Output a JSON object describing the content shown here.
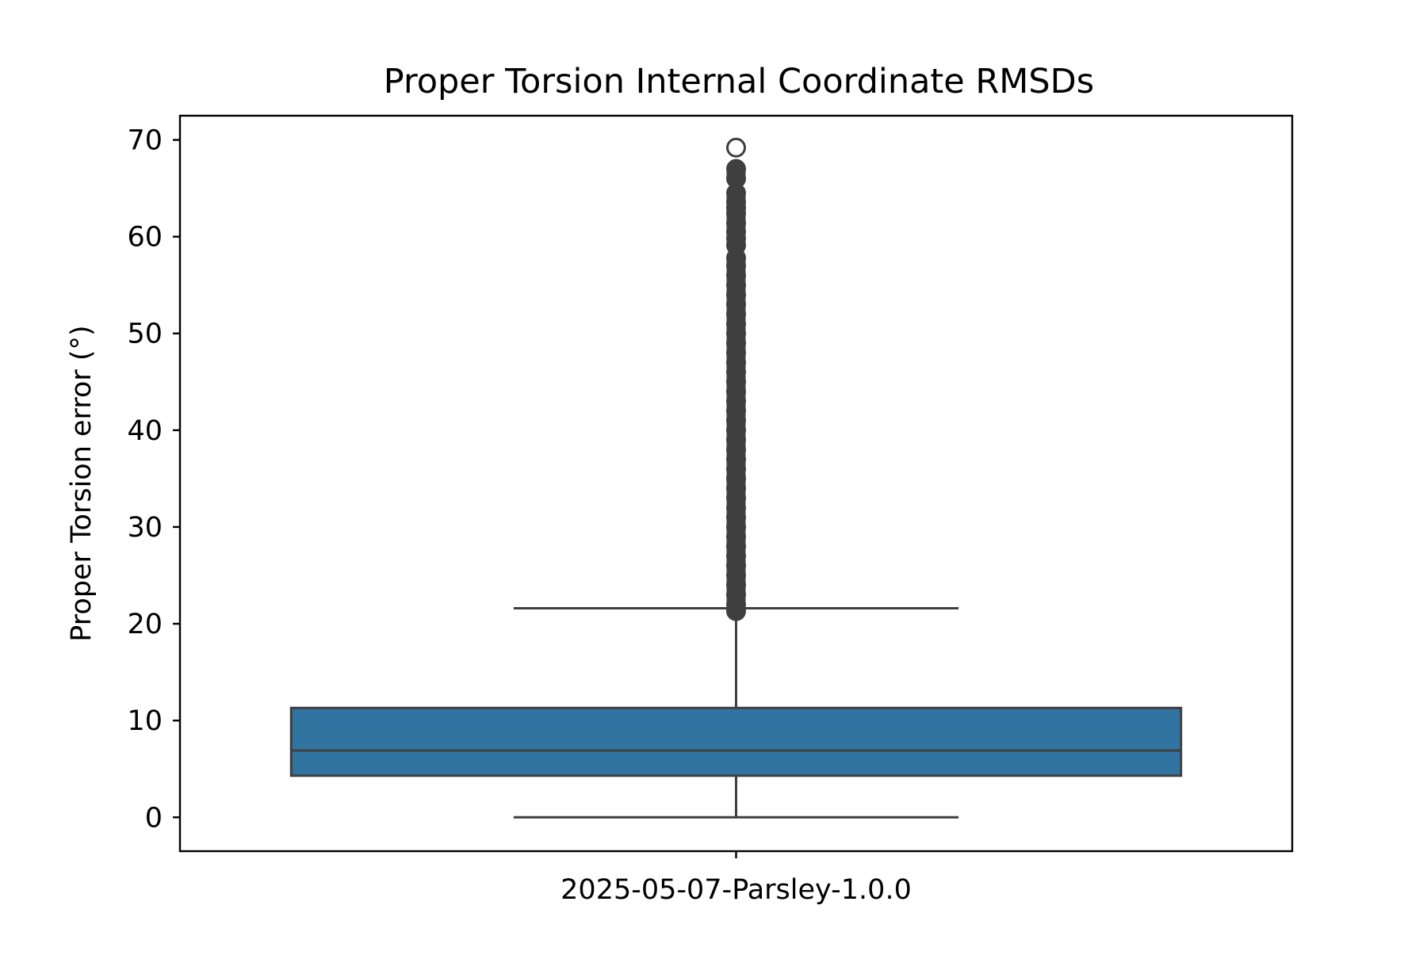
{
  "chart_data": {
    "type": "box",
    "title": "Proper Torsion Internal Coordinate RMSDs",
    "xlabel": "",
    "ylabel": "Proper Torsion error (°)",
    "ylim": [
      -3.5,
      72.5
    ],
    "yticks": [
      0,
      10,
      20,
      30,
      40,
      50,
      60,
      70
    ],
    "grid": false,
    "legend": "none",
    "colors": {
      "box_fill": "#3274a1",
      "lines": "#3f3f3f",
      "frame": "#000000"
    },
    "categories": [
      "2025-05-07-Parsley-1.0.0"
    ],
    "series": [
      {
        "category": "2025-05-07-Parsley-1.0.0",
        "whisker_low": 0.0,
        "q1": 4.3,
        "median": 6.9,
        "q3": 11.3,
        "whisker_high": 21.6,
        "outliers": [
          21.3,
          22.0,
          23.0,
          24.0,
          25.0,
          26.0,
          27.0,
          28.0,
          29.0,
          30.0,
          31.0,
          32.0,
          33.0,
          34.0,
          35.0,
          36.0,
          37.0,
          38.0,
          39.0,
          40.0,
          41.0,
          42.0,
          43.0,
          44.0,
          45.0,
          46.0,
          47.0,
          48.0,
          49.0,
          50.0,
          51.0,
          52.0,
          53.0,
          54.0,
          55.0,
          56.0,
          57.0,
          57.8,
          59.1,
          59.8,
          60.5,
          61.4,
          62.4,
          63.0,
          63.6,
          64.5,
          66.0,
          67.0,
          69.2
        ]
      }
    ]
  }
}
